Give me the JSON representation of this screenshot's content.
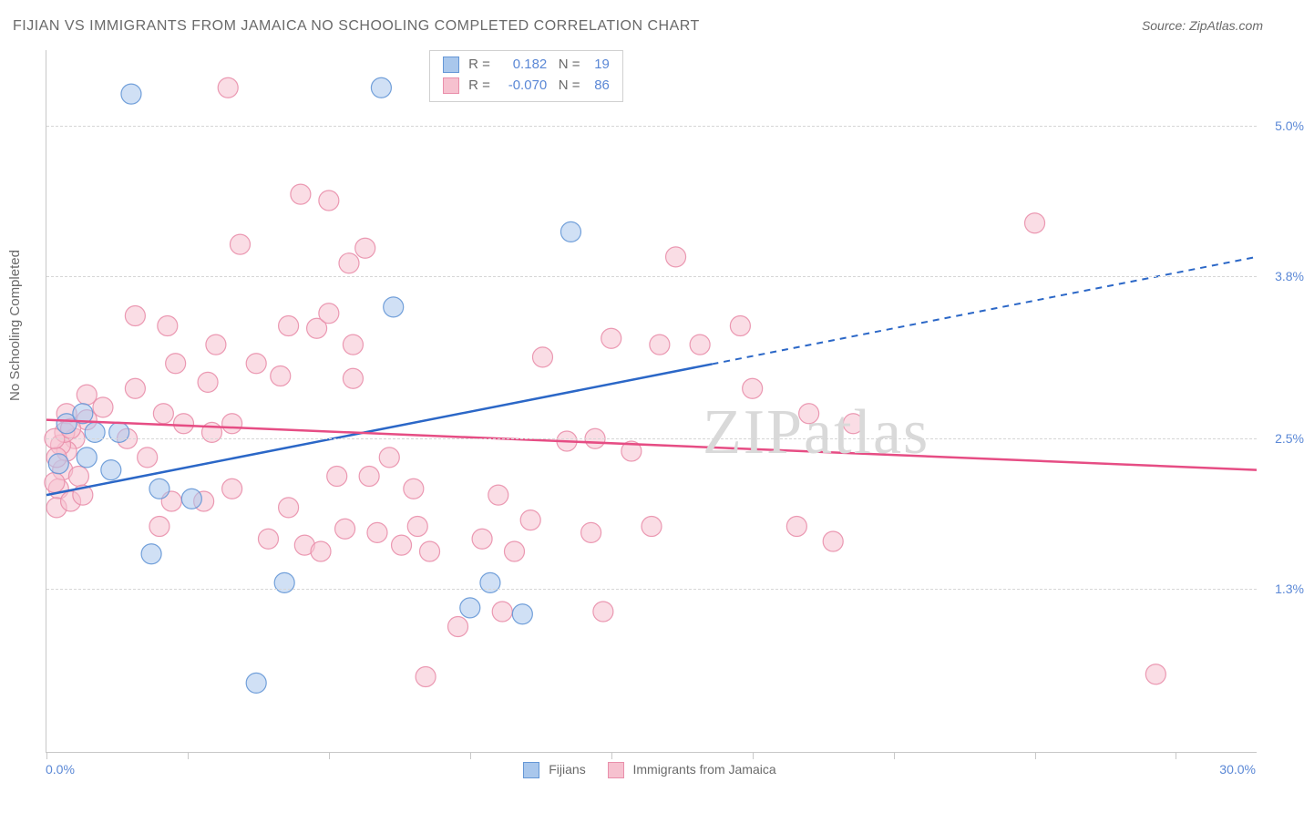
{
  "title": "FIJIAN VS IMMIGRANTS FROM JAMAICA NO SCHOOLING COMPLETED CORRELATION CHART",
  "source": "Source: ZipAtlas.com",
  "watermark_a": "ZIP",
  "watermark_b": "atlas",
  "chart": {
    "type": "scatter",
    "ylabel": "No Schooling Completed",
    "xlim": [
      0,
      30
    ],
    "ylim": [
      0,
      5.6
    ],
    "background_color": "#ffffff",
    "grid_color": "#d6d6d6",
    "axis_color": "#c8c8c8",
    "label_color": "#6a6a6a",
    "tick_label_color": "#5b88d6",
    "marker_radius": 11,
    "marker_opacity": 0.55,
    "xmin_label": "0.0%",
    "xmax_label": "30.0%",
    "xticks": [
      0,
      3.5,
      7,
      10.5,
      14,
      17.5,
      21,
      24.5,
      28
    ],
    "yticks": [
      {
        "v": 1.3,
        "label": "1.3%"
      },
      {
        "v": 2.5,
        "label": "2.5%"
      },
      {
        "v": 3.8,
        "label": "3.8%"
      },
      {
        "v": 5.0,
        "label": "5.0%"
      }
    ],
    "series": [
      {
        "name": "Fijians",
        "fill": "#a9c7ec",
        "stroke": "#6597d6",
        "line_color": "#2b67c7",
        "R": "0.182",
        "N": "19",
        "trend": {
          "x1": 0,
          "y1": 2.05,
          "x2": 30,
          "y2": 3.95,
          "solid_until_x": 16.5
        },
        "points": [
          [
            2.1,
            5.25
          ],
          [
            8.3,
            5.3
          ],
          [
            0.5,
            2.62
          ],
          [
            0.9,
            2.7
          ],
          [
            1.2,
            2.55
          ],
          [
            3.6,
            2.02
          ],
          [
            0.3,
            2.3
          ],
          [
            2.6,
            1.58
          ],
          [
            8.6,
            3.55
          ],
          [
            5.9,
            1.35
          ],
          [
            13.0,
            4.15
          ],
          [
            11.0,
            1.35
          ],
          [
            11.8,
            1.1
          ],
          [
            10.5,
            1.15
          ],
          [
            5.2,
            0.55
          ],
          [
            1.0,
            2.35
          ],
          [
            2.8,
            2.1
          ],
          [
            1.8,
            2.55
          ],
          [
            1.6,
            2.25
          ]
        ]
      },
      {
        "name": "Immigrants from Jamaica",
        "fill": "#f6c1cf",
        "stroke": "#e98fab",
        "line_color": "#e64d84",
        "R": "-0.070",
        "N": "86",
        "trend": {
          "x1": 0,
          "y1": 2.65,
          "x2": 30,
          "y2": 2.25,
          "solid_until_x": 30
        },
        "points": [
          [
            4.5,
            5.3
          ],
          [
            6.3,
            4.45
          ],
          [
            2.2,
            3.48
          ],
          [
            6.7,
            3.38
          ],
          [
            7.0,
            3.5
          ],
          [
            7.6,
            3.25
          ],
          [
            15.6,
            3.95
          ],
          [
            15.2,
            3.25
          ],
          [
            5.2,
            3.1
          ],
          [
            5.8,
            3.0
          ],
          [
            7.6,
            2.98
          ],
          [
            4.0,
            2.95
          ],
          [
            3.2,
            3.1
          ],
          [
            2.9,
            2.7
          ],
          [
            3.4,
            2.62
          ],
          [
            4.1,
            2.55
          ],
          [
            4.6,
            2.62
          ],
          [
            2.0,
            2.5
          ],
          [
            1.4,
            2.75
          ],
          [
            1.0,
            2.65
          ],
          [
            0.7,
            2.5
          ],
          [
            0.5,
            2.4
          ],
          [
            0.3,
            2.1
          ],
          [
            0.4,
            2.25
          ],
          [
            0.35,
            2.45
          ],
          [
            0.8,
            2.2
          ],
          [
            0.25,
            1.95
          ],
          [
            0.6,
            2.0
          ],
          [
            0.9,
            2.05
          ],
          [
            2.5,
            2.35
          ],
          [
            3.9,
            2.0
          ],
          [
            4.6,
            2.1
          ],
          [
            2.8,
            1.8
          ],
          [
            6.0,
            1.95
          ],
          [
            5.5,
            1.7
          ],
          [
            6.4,
            1.65
          ],
          [
            6.8,
            1.6
          ],
          [
            7.4,
            1.78
          ],
          [
            8.2,
            1.75
          ],
          [
            8.8,
            1.65
          ],
          [
            9.2,
            1.8
          ],
          [
            9.1,
            2.1
          ],
          [
            9.5,
            1.6
          ],
          [
            10.2,
            1.0
          ],
          [
            10.8,
            1.7
          ],
          [
            11.2,
            2.05
          ],
          [
            11.6,
            1.6
          ],
          [
            11.3,
            1.12
          ],
          [
            12.3,
            3.15
          ],
          [
            12.9,
            2.48
          ],
          [
            13.8,
            1.12
          ],
          [
            13.5,
            1.75
          ],
          [
            14.0,
            3.3
          ],
          [
            16.2,
            3.25
          ],
          [
            17.2,
            3.4
          ],
          [
            17.5,
            2.9
          ],
          [
            18.6,
            1.8
          ],
          [
            18.9,
            2.7
          ],
          [
            13.6,
            2.5
          ],
          [
            14.5,
            2.4
          ],
          [
            15.0,
            1.8
          ],
          [
            7.0,
            4.4
          ],
          [
            7.9,
            4.02
          ],
          [
            7.5,
            3.9
          ],
          [
            20.0,
            2.62
          ],
          [
            19.5,
            1.68
          ],
          [
            24.5,
            4.22
          ],
          [
            27.5,
            0.62
          ],
          [
            9.4,
            0.6
          ],
          [
            3.1,
            2.0
          ],
          [
            0.45,
            2.55
          ],
          [
            0.25,
            2.35
          ],
          [
            0.2,
            2.5
          ],
          [
            0.5,
            2.7
          ],
          [
            1.0,
            2.85
          ],
          [
            4.2,
            3.25
          ],
          [
            6.0,
            3.4
          ],
          [
            4.8,
            4.05
          ],
          [
            12.0,
            1.85
          ],
          [
            2.2,
            2.9
          ],
          [
            3.0,
            3.4
          ],
          [
            0.6,
            2.58
          ],
          [
            0.2,
            2.15
          ],
          [
            7.2,
            2.2
          ],
          [
            8.0,
            2.2
          ],
          [
            8.5,
            2.35
          ]
        ]
      }
    ]
  }
}
